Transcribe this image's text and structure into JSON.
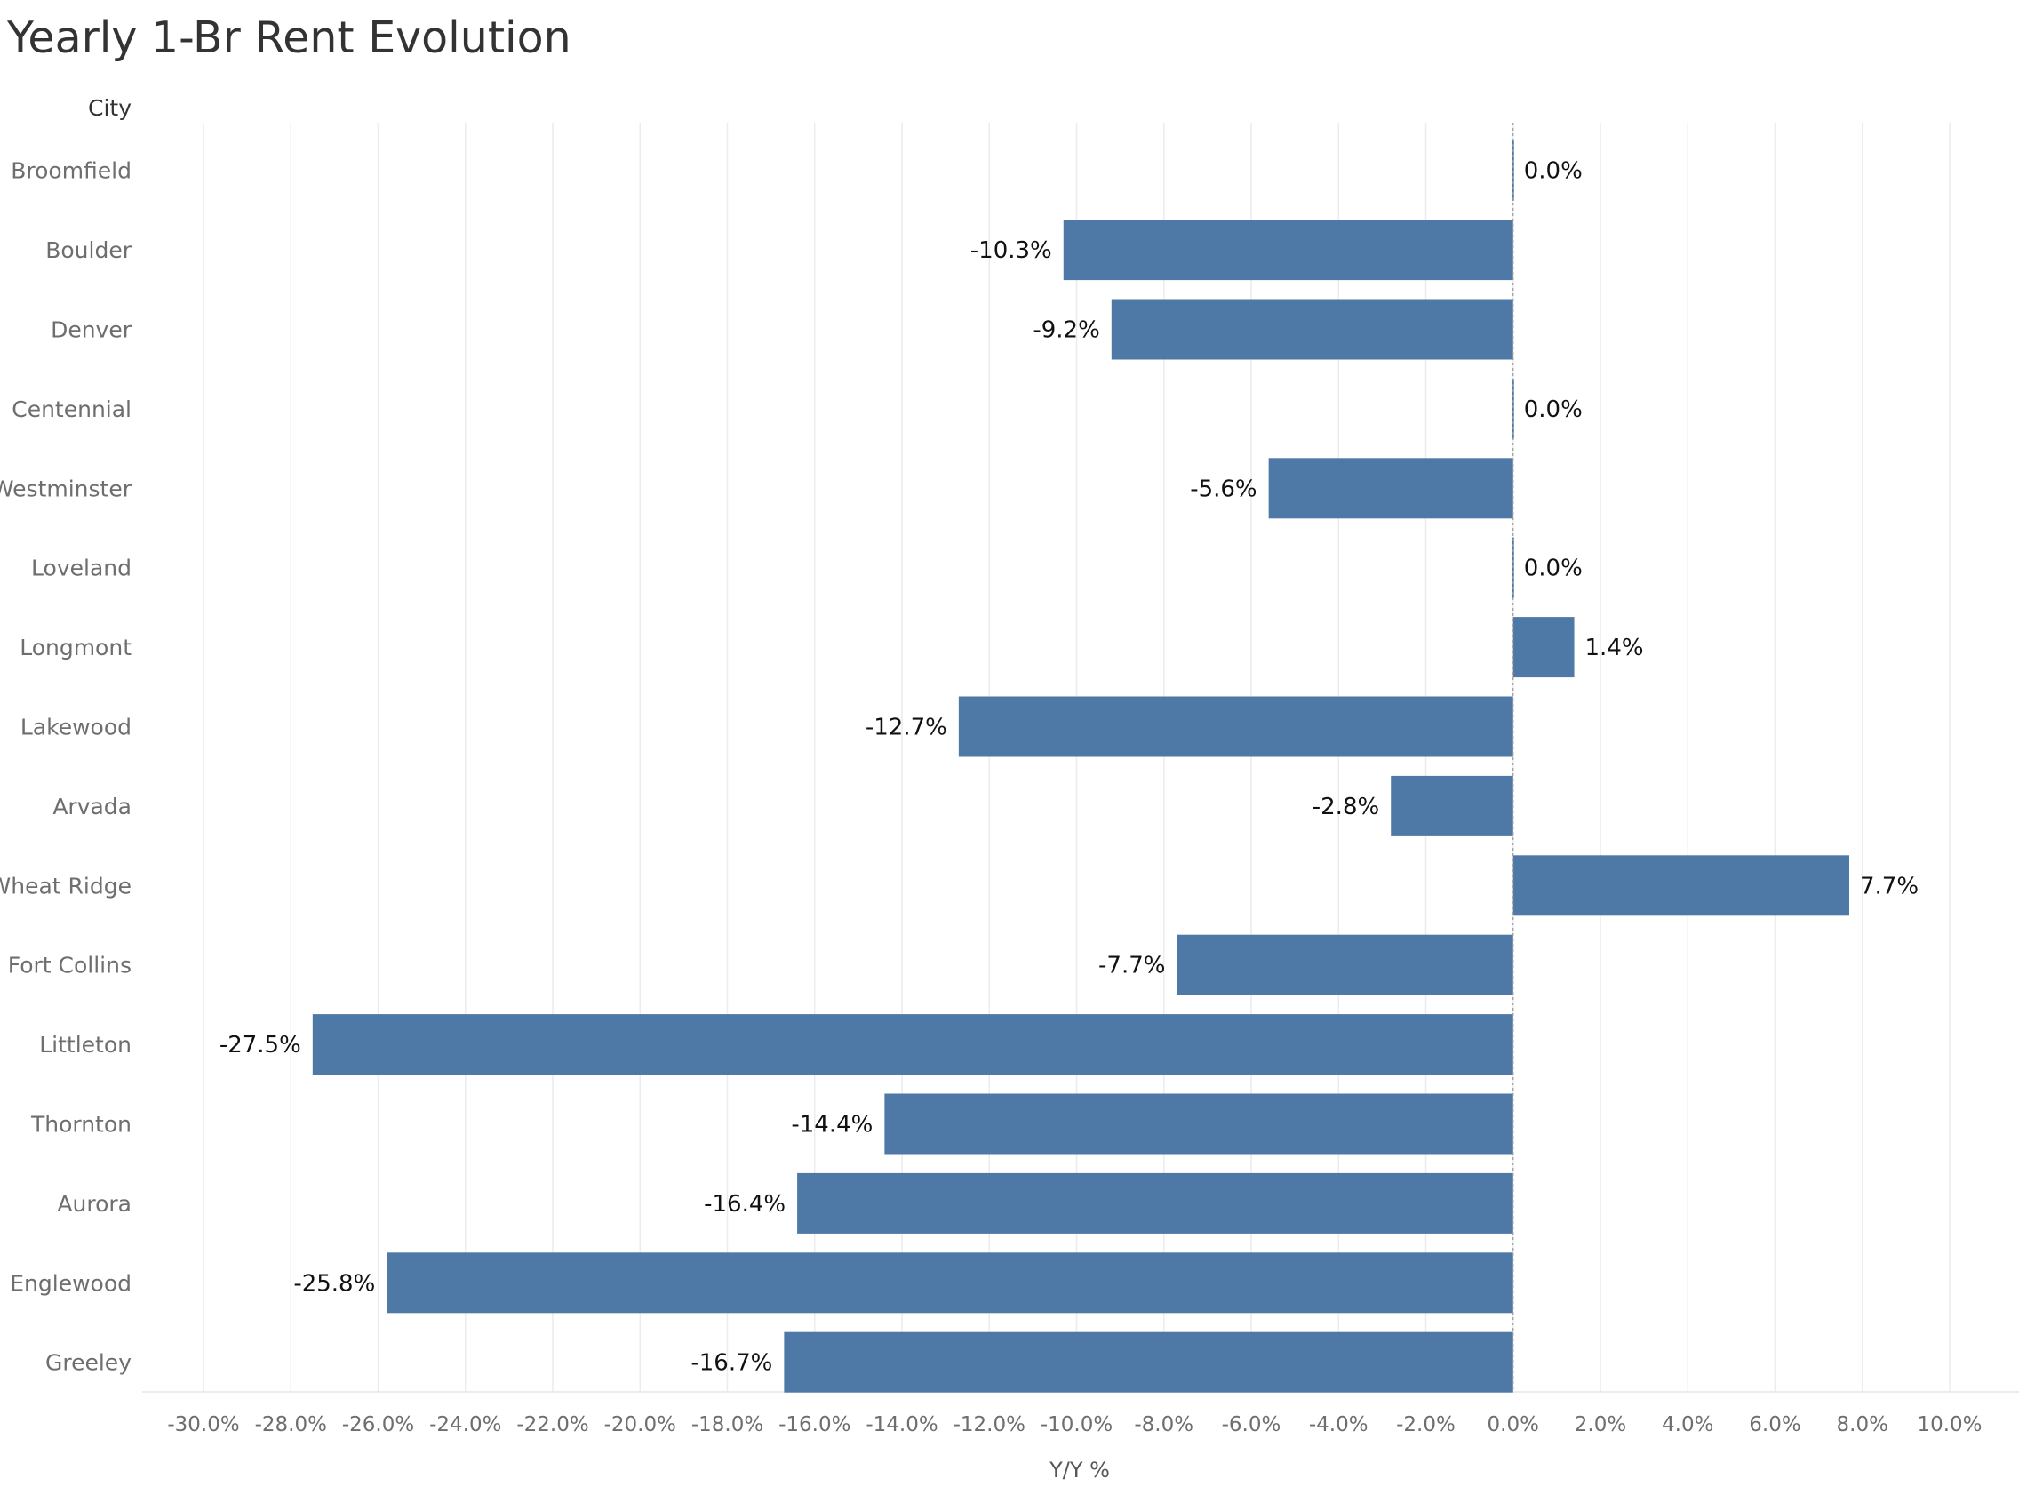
{
  "chart_data": {
    "type": "bar",
    "orientation": "horizontal",
    "title": "Yearly 1-Br Rent Evolution",
    "ylabel": "City",
    "xlabel": "Y/Y %",
    "categories": [
      "Broomfield",
      "Boulder",
      "Denver",
      "Centennial",
      "Westminster",
      "Loveland",
      "Longmont",
      "Lakewood",
      "Arvada",
      "Wheat Ridge",
      "Fort Collins",
      "Littleton",
      "Thornton",
      "Aurora",
      "Englewood",
      "Greeley"
    ],
    "values": [
      0.0,
      -10.3,
      -9.2,
      0.0,
      -5.6,
      0.0,
      1.4,
      -12.7,
      -2.8,
      7.7,
      -7.7,
      -27.5,
      -14.4,
      -16.4,
      -25.8,
      -16.7
    ],
    "value_labels": [
      "0.0%",
      "-10.3%",
      "-9.2%",
      "0.0%",
      "-5.6%",
      "0.0%",
      "1.4%",
      "-12.7%",
      "-2.8%",
      "7.7%",
      "-7.7%",
      "-27.5%",
      "-14.4%",
      "-16.4%",
      "-25.8%",
      "-16.7%"
    ],
    "xlim": [
      -30,
      10
    ],
    "x_ticks": [
      -30,
      -28,
      -26,
      -24,
      -22,
      -20,
      -18,
      -16,
      -14,
      -12,
      -10,
      -8,
      -6,
      -4,
      -2,
      0,
      2,
      4,
      6,
      8,
      10
    ],
    "x_tick_labels": [
      "-30.0%",
      "-28.0%",
      "-26.0%",
      "-24.0%",
      "-22.0%",
      "-20.0%",
      "-18.0%",
      "-16.0%",
      "-14.0%",
      "-12.0%",
      "-10.0%",
      "-8.0%",
      "-6.0%",
      "-4.0%",
      "-2.0%",
      "0.0%",
      "2.0%",
      "4.0%",
      "6.0%",
      "8.0%",
      "10.0%"
    ],
    "grid": true,
    "bar_color": "#4e79a7"
  }
}
